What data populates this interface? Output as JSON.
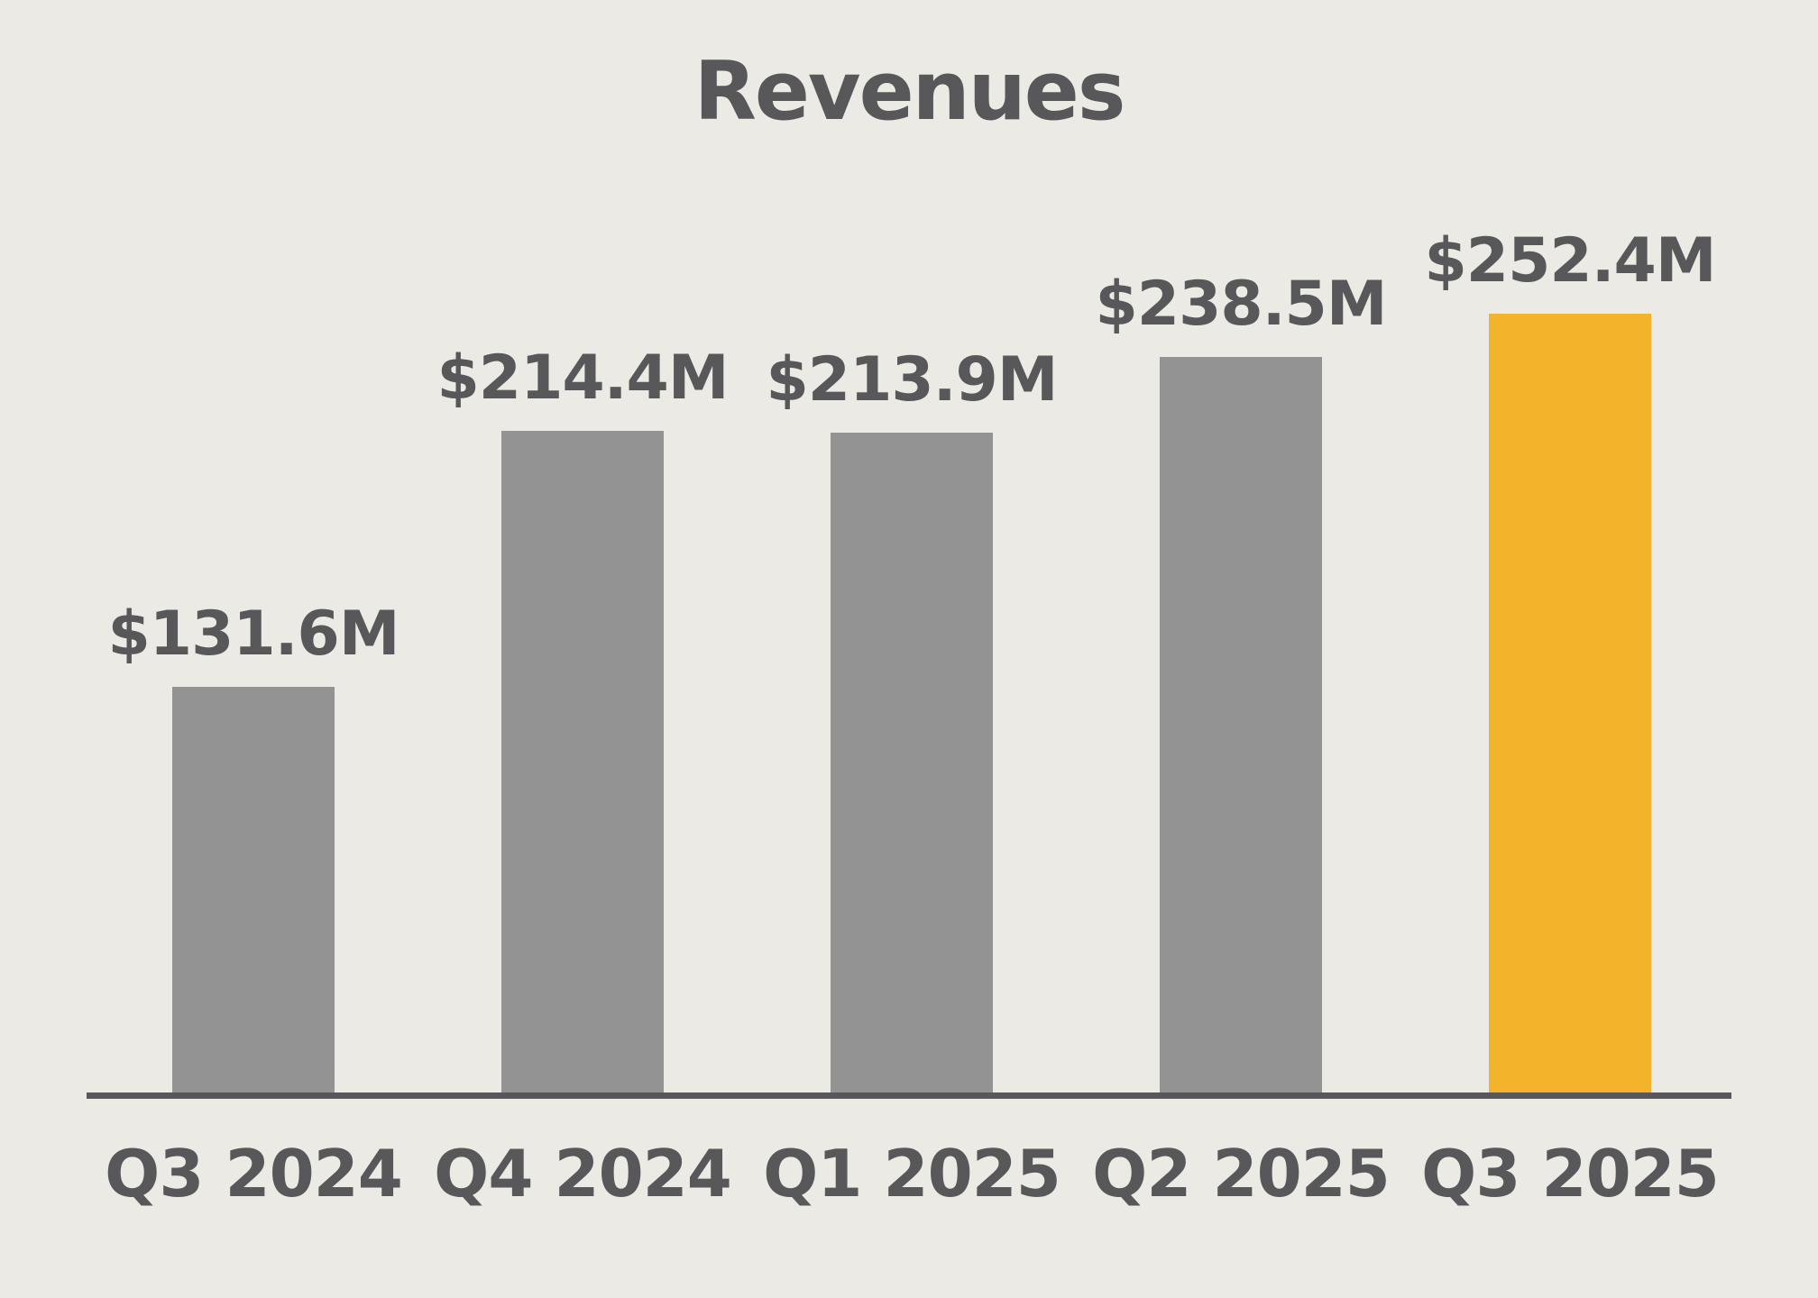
{
  "colors": {
    "background": "#ECEAE5",
    "bar_default": "#939393",
    "bar_highlight": "#F3B32A",
    "text": "#58585A",
    "axis_line": "#58585A"
  },
  "chart_data": {
    "type": "bar",
    "title": "Revenues",
    "categories": [
      "Q3 2024",
      "Q4 2024",
      "Q1 2025",
      "Q2 2025",
      "Q3 2025"
    ],
    "values": [
      131.6,
      214.4,
      213.9,
      238.5,
      252.4
    ],
    "value_labels": [
      "$131.6M",
      "$214.4M",
      "$213.9M",
      "$238.5M",
      "$252.4M"
    ],
    "highlight_index": 4,
    "bar_colors": [
      "#939393",
      "#939393",
      "#939393",
      "#939393",
      "#F3B32A"
    ],
    "xlabel": "",
    "ylabel": "",
    "ylim": [
      0,
      260
    ],
    "grid": false,
    "legend": false
  }
}
